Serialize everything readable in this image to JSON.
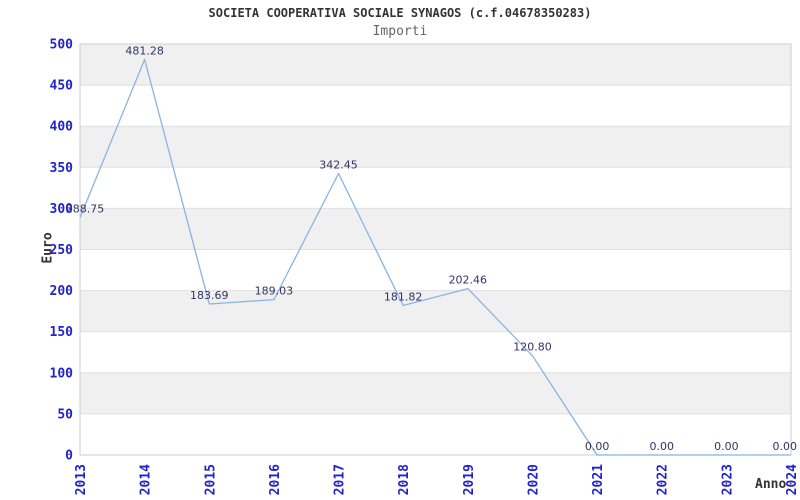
{
  "chart_data": {
    "type": "line",
    "title": "SOCIETA COOPERATIVA SOCIALE SYNAGOS (c.f.04678350283)",
    "subtitle": "Importi",
    "xlabel": "Anno",
    "ylabel": "Euro",
    "categories": [
      "2013",
      "2014",
      "2015",
      "2016",
      "2017",
      "2018",
      "2019",
      "2020",
      "2021",
      "2022",
      "2023",
      "2024"
    ],
    "values": [
      288.75,
      481.28,
      183.69,
      189.03,
      342.45,
      181.82,
      202.46,
      120.8,
      0.0,
      0.0,
      0.0,
      0.0
    ],
    "point_labels": [
      "288.75",
      "481.28",
      "183.69",
      "189.03",
      "342.45",
      "181.82",
      "202.46",
      "120.80",
      "0.00",
      "0.00",
      "0.00",
      "0.00"
    ],
    "ylim": [
      0,
      500
    ],
    "ytick_step": 50,
    "grid": "horizontal-gridlines-with-alternating-bands",
    "legend": "none",
    "colors": {
      "line": "#88b4e6",
      "tick_label": "#2222cc",
      "point_label": "#333366",
      "band": "#f0f0f0",
      "band_alt": "#ffffff",
      "gridline": "#e0e0e0",
      "border": "#cccccc",
      "title": "#333333",
      "subtitle": "#666666",
      "axis_title": "#333333"
    }
  }
}
